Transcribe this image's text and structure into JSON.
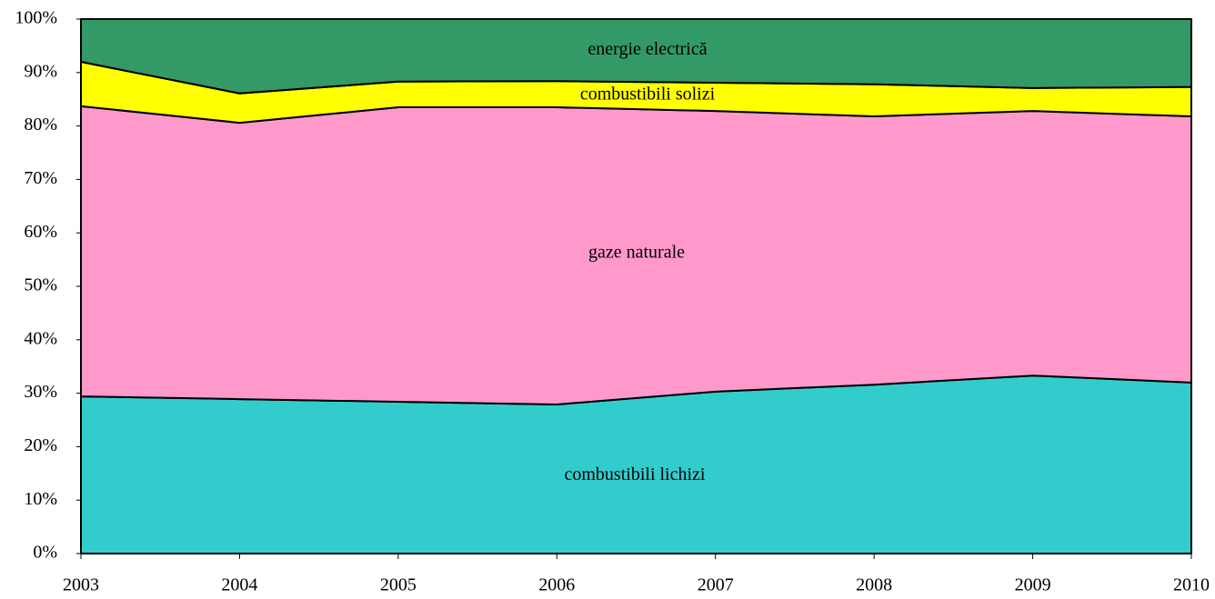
{
  "chart_data": {
    "type": "stacked_area",
    "categories": [
      "2003",
      "2004",
      "2005",
      "2006",
      "2007",
      "2008",
      "2009",
      "2010"
    ],
    "series": [
      {
        "name": "combustibili lichizi",
        "color": "#33cccc",
        "values": [
          29.4,
          28.9,
          28.4,
          27.9,
          30.3,
          31.6,
          33.3,
          32.0
        ]
      },
      {
        "name": "gaze naturale",
        "color": "#ff99cc",
        "values": [
          54.3,
          51.7,
          55.1,
          55.6,
          52.5,
          50.2,
          49.5,
          49.8
        ]
      },
      {
        "name": "combustibili solizi",
        "color": "#ffff00",
        "values": [
          8.3,
          5.5,
          4.8,
          4.9,
          5.3,
          6.0,
          4.3,
          5.5
        ]
      },
      {
        "name": "energie electrică",
        "color": "#339966",
        "values": [
          8.0,
          13.9,
          11.7,
          11.6,
          11.9,
          12.2,
          12.9,
          12.7
        ]
      }
    ],
    "ylim": [
      0,
      100
    ],
    "yticks": [
      {
        "value": 0,
        "label": "0%"
      },
      {
        "value": 10,
        "label": "10%"
      },
      {
        "value": 20,
        "label": "20%"
      },
      {
        "value": 30,
        "label": "30%"
      },
      {
        "value": 40,
        "label": "40%"
      },
      {
        "value": 50,
        "label": "50%"
      },
      {
        "value": 60,
        "label": "60%"
      },
      {
        "value": 70,
        "label": "70%"
      },
      {
        "value": 80,
        "label": "80%"
      },
      {
        "value": 90,
        "label": "90%"
      },
      {
        "value": 100,
        "label": "100%"
      }
    ]
  }
}
